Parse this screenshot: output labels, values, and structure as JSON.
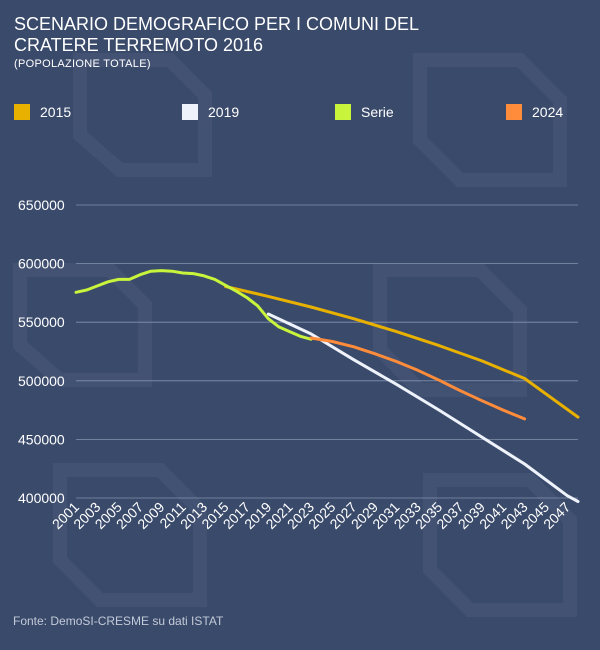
{
  "header": {
    "title": "SCENARIO DEMOGRAFICO PER I COMUNI DEL CRATERE TERREMOTO 2016",
    "subtitle": "(POPOLAZIONE TOTALE)"
  },
  "footer": {
    "source": "Fonte: DemoSI-CRESME su dati ISTAT"
  },
  "chart_data": {
    "type": "line",
    "title": "SCENARIO DEMOGRAFICO PER I COMUNI DEL CRATERE TERREMOTO 2016",
    "subtitle": "(POPOLAZIONE TOTALE)",
    "xlim": [
      2001,
      2048
    ],
    "ylim": [
      400000,
      650000
    ],
    "yticks": [
      400000,
      450000,
      500000,
      550000,
      600000,
      650000
    ],
    "xticks": [
      2001,
      2003,
      2005,
      2007,
      2009,
      2011,
      2013,
      2015,
      2017,
      2019,
      2021,
      2023,
      2025,
      2027,
      2029,
      2031,
      2033,
      2035,
      2037,
      2039,
      2041,
      2043,
      2045,
      2047
    ],
    "grid": "horizontal",
    "legend_position": "top",
    "series": [
      {
        "name": "2015",
        "color": "#e8b100",
        "points": [
          [
            2015,
            580500
          ],
          [
            2019,
            572000
          ],
          [
            2023,
            563000
          ],
          [
            2027,
            553000
          ],
          [
            2031,
            542000
          ],
          [
            2035,
            530000
          ],
          [
            2039,
            517000
          ],
          [
            2043,
            502000
          ],
          [
            2048,
            469000
          ]
        ]
      },
      {
        "name": "2019",
        "color": "#eef3fb",
        "points": [
          [
            2019,
            557000
          ],
          [
            2023,
            540000
          ],
          [
            2027,
            518000
          ],
          [
            2031,
            497000
          ],
          [
            2035,
            475000
          ],
          [
            2039,
            452000
          ],
          [
            2043,
            429000
          ],
          [
            2047,
            402000
          ],
          [
            2048,
            397000
          ]
        ]
      },
      {
        "name": "Serie",
        "color": "#c8f53c",
        "points": [
          [
            2001,
            575500
          ],
          [
            2002,
            577500
          ],
          [
            2003,
            581000
          ],
          [
            2004,
            584500
          ],
          [
            2005,
            586500
          ],
          [
            2006,
            586500
          ],
          [
            2007,
            590500
          ],
          [
            2008,
            593500
          ],
          [
            2009,
            594000
          ],
          [
            2010,
            593500
          ],
          [
            2011,
            592000
          ],
          [
            2012,
            591500
          ],
          [
            2013,
            589500
          ],
          [
            2014,
            586500
          ],
          [
            2015,
            581500
          ],
          [
            2016,
            576500
          ],
          [
            2017,
            571000
          ],
          [
            2018,
            564000
          ],
          [
            2019,
            553000
          ],
          [
            2020,
            546000
          ],
          [
            2021,
            542000
          ],
          [
            2022,
            538000
          ],
          [
            2023,
            535500
          ]
        ]
      },
      {
        "name": "2024",
        "color": "#ff8c3a",
        "points": [
          [
            2023,
            536500
          ],
          [
            2025,
            533500
          ],
          [
            2027,
            529000
          ],
          [
            2029,
            523000
          ],
          [
            2031,
            516500
          ],
          [
            2033,
            509000
          ],
          [
            2035,
            500500
          ],
          [
            2037,
            491500
          ],
          [
            2039,
            483000
          ],
          [
            2041,
            475000
          ],
          [
            2043,
            467500
          ]
        ]
      }
    ]
  }
}
